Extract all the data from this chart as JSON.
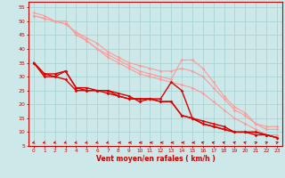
{
  "title": "",
  "xlabel": "Vent moyen/en rafales ( km/h )",
  "ylabel": "",
  "bg_color": "#cce8e8",
  "grid_color": "#aad4d4",
  "axis_color": "#cc0000",
  "tick_color": "#cc0000",
  "xlim": [
    -0.5,
    23.5
  ],
  "ylim": [
    5,
    57
  ],
  "yticks": [
    5,
    10,
    15,
    20,
    25,
    30,
    35,
    40,
    45,
    50,
    55
  ],
  "xticks": [
    0,
    1,
    2,
    3,
    4,
    5,
    6,
    7,
    8,
    9,
    10,
    11,
    12,
    13,
    14,
    15,
    16,
    17,
    18,
    19,
    20,
    21,
    22,
    23
  ],
  "series_light": [
    {
      "x": [
        0,
        1,
        2,
        3,
        4,
        5,
        6,
        7,
        8,
        9,
        10,
        11,
        12,
        13,
        14,
        15,
        16,
        17,
        18,
        19,
        20,
        21,
        22,
        23
      ],
      "y": [
        52,
        51,
        50,
        49,
        46,
        44,
        42,
        39,
        37,
        35,
        34,
        33,
        32,
        32,
        33,
        32,
        30,
        26,
        22,
        18,
        16,
        13,
        12,
        12
      ]
    },
    {
      "x": [
        0,
        1,
        2,
        3,
        4,
        5,
        6,
        7,
        8,
        9,
        10,
        11,
        12,
        13,
        14,
        15,
        16,
        17,
        18,
        19,
        20,
        21,
        22,
        23
      ],
      "y": [
        52,
        51,
        50,
        50,
        45,
        43,
        40,
        38,
        36,
        34,
        32,
        31,
        30,
        29,
        36,
        36,
        33,
        28,
        23,
        19,
        17,
        13,
        11,
        11
      ]
    },
    {
      "x": [
        0,
        1,
        2,
        3,
        4,
        5,
        6,
        7,
        8,
        9,
        10,
        11,
        12,
        13,
        14,
        15,
        16,
        17,
        18,
        19,
        20,
        21,
        22,
        23
      ],
      "y": [
        53,
        52,
        50,
        49,
        46,
        43,
        40,
        37,
        35,
        33,
        31,
        30,
        29,
        28,
        27,
        26,
        24,
        21,
        18,
        15,
        13,
        11,
        9,
        9
      ]
    }
  ],
  "series_dark": [
    {
      "x": [
        0,
        1,
        2,
        3,
        4,
        5,
        6,
        7,
        8,
        9,
        10,
        11,
        12,
        13,
        14,
        15,
        16,
        17,
        18,
        19,
        20,
        21,
        22,
        23
      ],
      "y": [
        35,
        30,
        30,
        29,
        25,
        25,
        25,
        25,
        24,
        23,
        21,
        22,
        22,
        28,
        25,
        15,
        14,
        13,
        12,
        10,
        10,
        9,
        9,
        8
      ]
    },
    {
      "x": [
        0,
        1,
        2,
        3,
        4,
        5,
        6,
        7,
        8,
        9,
        10,
        11,
        12,
        13,
        14,
        15,
        16,
        17,
        18,
        19,
        20,
        21,
        22,
        23
      ],
      "y": [
        35,
        31,
        31,
        32,
        26,
        26,
        25,
        25,
        23,
        22,
        22,
        22,
        21,
        21,
        16,
        15,
        13,
        12,
        11,
        10,
        10,
        10,
        9,
        8
      ]
    },
    {
      "x": [
        0,
        1,
        2,
        3,
        4,
        5,
        6,
        7,
        8,
        9,
        10,
        11,
        12,
        13,
        14,
        15,
        16,
        17,
        18,
        19,
        20,
        21,
        22,
        23
      ],
      "y": [
        35,
        31,
        30,
        32,
        26,
        25,
        25,
        24,
        23,
        22,
        22,
        22,
        21,
        21,
        16,
        15,
        13,
        12,
        11,
        10,
        10,
        10,
        9,
        8
      ]
    }
  ],
  "light_color": "#ff9999",
  "dark_color": "#dd0000",
  "arrow_angles": [
    225,
    225,
    225,
    225,
    225,
    225,
    225,
    225,
    270,
    270,
    270,
    270,
    270,
    270,
    270,
    270,
    315,
    315,
    315,
    315,
    315,
    45,
    45,
    45
  ]
}
